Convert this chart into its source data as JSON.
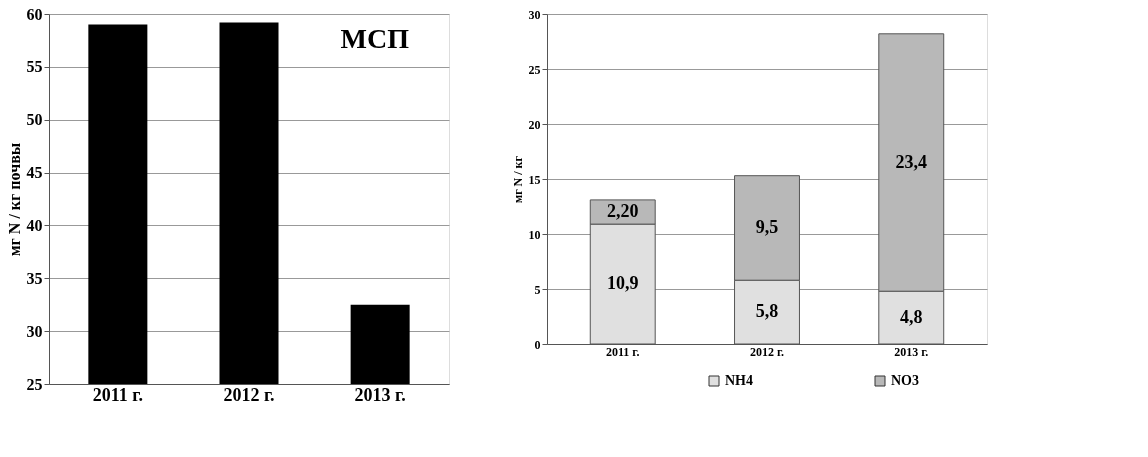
{
  "chart_data": [
    {
      "type": "bar",
      "ylabel": "мг N / кг почвы",
      "categories": [
        "2011 г.",
        "2012 г.",
        "2013 г."
      ],
      "values": [
        59.0,
        59.2,
        32.5
      ],
      "color": "#000000",
      "ylim": [
        25,
        60
      ],
      "yticks": [
        25,
        30,
        35,
        40,
        45,
        50,
        55,
        60
      ],
      "grid": "y",
      "annotations": [
        "МСП"
      ]
    },
    {
      "type": "bar",
      "stacked": true,
      "ylabel": "мг N / кг",
      "categories": [
        "2011 г.",
        "2012 г.",
        "2013 г."
      ],
      "ylim": [
        0,
        30
      ],
      "yticks": [
        0,
        5,
        10,
        15,
        20,
        25,
        30
      ],
      "grid": "y",
      "legend": "bottom",
      "series": [
        {
          "name": "NH4",
          "color": "#e0e0e0",
          "values": [
            10.9,
            5.8,
            4.8
          ],
          "value_labels": [
            "10,9",
            "5,8",
            "4,8"
          ]
        },
        {
          "name": "NO3",
          "color": "#b8b8b8",
          "values": [
            2.2,
            9.5,
            23.4
          ],
          "value_labels": [
            "2,20",
            "9,5",
            "23,4"
          ]
        }
      ]
    }
  ]
}
